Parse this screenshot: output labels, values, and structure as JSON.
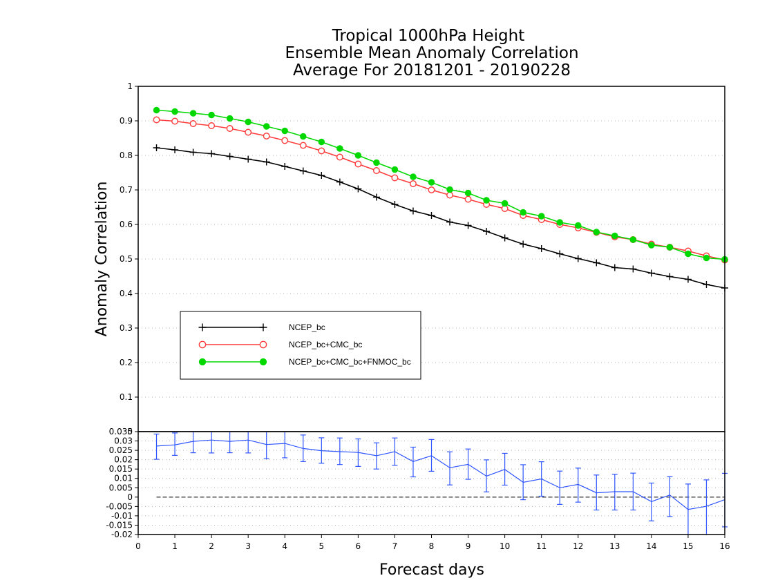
{
  "chart_data": [
    {
      "type": "line",
      "title": [
        "Tropical 1000hPa Height",
        "Ensemble Mean Anomaly Correlation",
        "Average For 20181201 - 20190228"
      ],
      "ylabel": "Anomaly Correlation",
      "xlabel": "",
      "xlim": [
        0,
        16
      ],
      "ylim": [
        0,
        1
      ],
      "yticks": [
        "1",
        "0.9",
        "0.8",
        "0.7",
        "0.6",
        "0.5",
        "0.4",
        "0.3",
        "0.2",
        "0.1",
        "0"
      ],
      "grid": true,
      "legend_position": "lower-left",
      "x": [
        0.5,
        1,
        1.5,
        2,
        2.5,
        3,
        3.5,
        4,
        4.5,
        5,
        5.5,
        6,
        6.5,
        7,
        7.5,
        8,
        8.5,
        9,
        9.5,
        10,
        10.5,
        11,
        11.5,
        12,
        12.5,
        13,
        13.5,
        14,
        14.5,
        15,
        15.5,
        16
      ],
      "series": [
        {
          "name": "NCEP_bc",
          "color": "#000000",
          "marker": "plus",
          "values": [
            0.822,
            0.816,
            0.809,
            0.805,
            0.797,
            0.789,
            0.781,
            0.768,
            0.755,
            0.742,
            0.723,
            0.703,
            0.679,
            0.658,
            0.639,
            0.626,
            0.607,
            0.597,
            0.58,
            0.561,
            0.543,
            0.53,
            0.515,
            0.501,
            0.489,
            0.475,
            0.471,
            0.459,
            0.449,
            0.441,
            0.426,
            0.416
          ]
        },
        {
          "name": "NCEP_bc+CMC_bc",
          "color": "#ff3b3b",
          "marker": "open-circle",
          "values": [
            0.903,
            0.899,
            0.892,
            0.886,
            0.878,
            0.867,
            0.856,
            0.843,
            0.829,
            0.813,
            0.795,
            0.775,
            0.756,
            0.735,
            0.718,
            0.7,
            0.685,
            0.673,
            0.658,
            0.646,
            0.626,
            0.614,
            0.6,
            0.59,
            0.577,
            0.564,
            0.556,
            0.543,
            0.534,
            0.523,
            0.509,
            0.497
          ]
        },
        {
          "name": "NCEP_bc+CMC_bc+FNMOC_bc",
          "color": "#00d800",
          "marker": "filled-circle",
          "values": [
            0.931,
            0.927,
            0.922,
            0.917,
            0.907,
            0.897,
            0.884,
            0.871,
            0.855,
            0.839,
            0.82,
            0.8,
            0.779,
            0.759,
            0.738,
            0.722,
            0.701,
            0.691,
            0.67,
            0.661,
            0.635,
            0.624,
            0.606,
            0.597,
            0.578,
            0.567,
            0.556,
            0.54,
            0.534,
            0.515,
            0.503,
            0.499
          ]
        }
      ]
    },
    {
      "type": "line",
      "title": "",
      "xlabel": "Forecast days",
      "ylabel": "",
      "xlim": [
        0,
        16
      ],
      "ylim": [
        -0.02,
        0.035
      ],
      "xticks": [
        "0",
        "1",
        "2",
        "3",
        "4",
        "5",
        "6",
        "7",
        "8",
        "9",
        "10",
        "11",
        "12",
        "13",
        "14",
        "15",
        "16"
      ],
      "yticks": [
        "0.035",
        "0.03",
        "0.025",
        "0.02",
        "0.015",
        "0.01",
        "0.005",
        "0",
        "-0.005",
        "-0.01",
        "-0.015",
        "-0.02"
      ],
      "grid": true,
      "x": [
        0.5,
        1,
        1.5,
        2,
        2.5,
        3,
        3.5,
        4,
        4.5,
        5,
        5.5,
        6,
        6.5,
        7,
        7.5,
        8,
        8.5,
        9,
        9.5,
        10,
        10.5,
        11,
        11.5,
        12,
        12.5,
        13,
        13.5,
        14,
        14.5,
        15,
        15.5,
        16
      ],
      "series": [
        {
          "name": "",
          "color": "#2f55ff",
          "marker": "error-bar",
          "values": [
            0.0273,
            0.0279,
            0.0298,
            0.0305,
            0.0298,
            0.0305,
            0.0281,
            0.0287,
            0.026,
            0.0248,
            0.0243,
            0.0239,
            0.0221,
            0.0243,
            0.019,
            0.0221,
            0.0157,
            0.0175,
            0.0112,
            0.0148,
            0.0079,
            0.0097,
            0.005,
            0.0068,
            0.0023,
            0.0029,
            0.0029,
            -0.0024,
            0.0011,
            -0.0066,
            -0.0049,
            -0.0014
          ],
          "error_low": [
            0.0202,
            0.0223,
            0.0237,
            0.0236,
            0.0237,
            0.0236,
            0.0205,
            0.021,
            0.019,
            0.0181,
            0.0174,
            0.0164,
            0.015,
            0.017,
            0.0108,
            0.0138,
            0.0065,
            0.0095,
            0.0028,
            0.0064,
            -0.0014,
            0.0005,
            -0.0039,
            -0.0027,
            -0.0069,
            -0.0069,
            -0.0069,
            -0.0127,
            -0.0104,
            -0.02,
            -0.02,
            -0.0159
          ],
          "error_high": [
            0.0337,
            0.0343,
            0.036,
            0.0373,
            0.0363,
            0.0372,
            0.0357,
            0.0357,
            0.0332,
            0.0317,
            0.0316,
            0.0311,
            0.029,
            0.0316,
            0.0267,
            0.0308,
            0.0242,
            0.0257,
            0.0199,
            0.0234,
            0.0173,
            0.0189,
            0.0139,
            0.0155,
            0.0118,
            0.0122,
            0.0128,
            0.0075,
            0.0109,
            0.007,
            0.0092,
            0.0127
          ]
        }
      ]
    }
  ]
}
